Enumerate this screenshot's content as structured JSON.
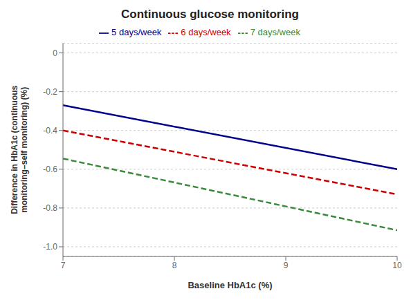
{
  "chart_data": {
    "type": "line",
    "title": "Continuous glucose monitoring",
    "x_label": "Baseline HbA1c (%)",
    "y_label": "Difference in HbA1c (continuous\nmonitoring–self monitoring) (%)",
    "x": [
      7,
      10
    ],
    "xlim": [
      7,
      10
    ],
    "xticks": [
      7,
      8,
      9,
      10
    ],
    "ylim": [
      -1.05,
      0.05
    ],
    "yticks": [
      0,
      -0.2,
      -0.4,
      -0.6,
      -0.8,
      {
        "value": -1.0,
        "label": "-1.0"
      }
    ],
    "grid": true,
    "legend": "top",
    "series": [
      {
        "name": "5 days/week",
        "color": "#00008B",
        "line_style": "solid",
        "values": [
          -0.27,
          -0.6
        ]
      },
      {
        "name": "6 days/week",
        "color": "#CC0000",
        "line_style": "dashed",
        "values": [
          -0.4,
          -0.73
        ]
      },
      {
        "name": "7 days/week",
        "color": "#3a8a3a",
        "line_style": "dashed",
        "values": [
          -0.545,
          -0.915
        ]
      }
    ]
  }
}
